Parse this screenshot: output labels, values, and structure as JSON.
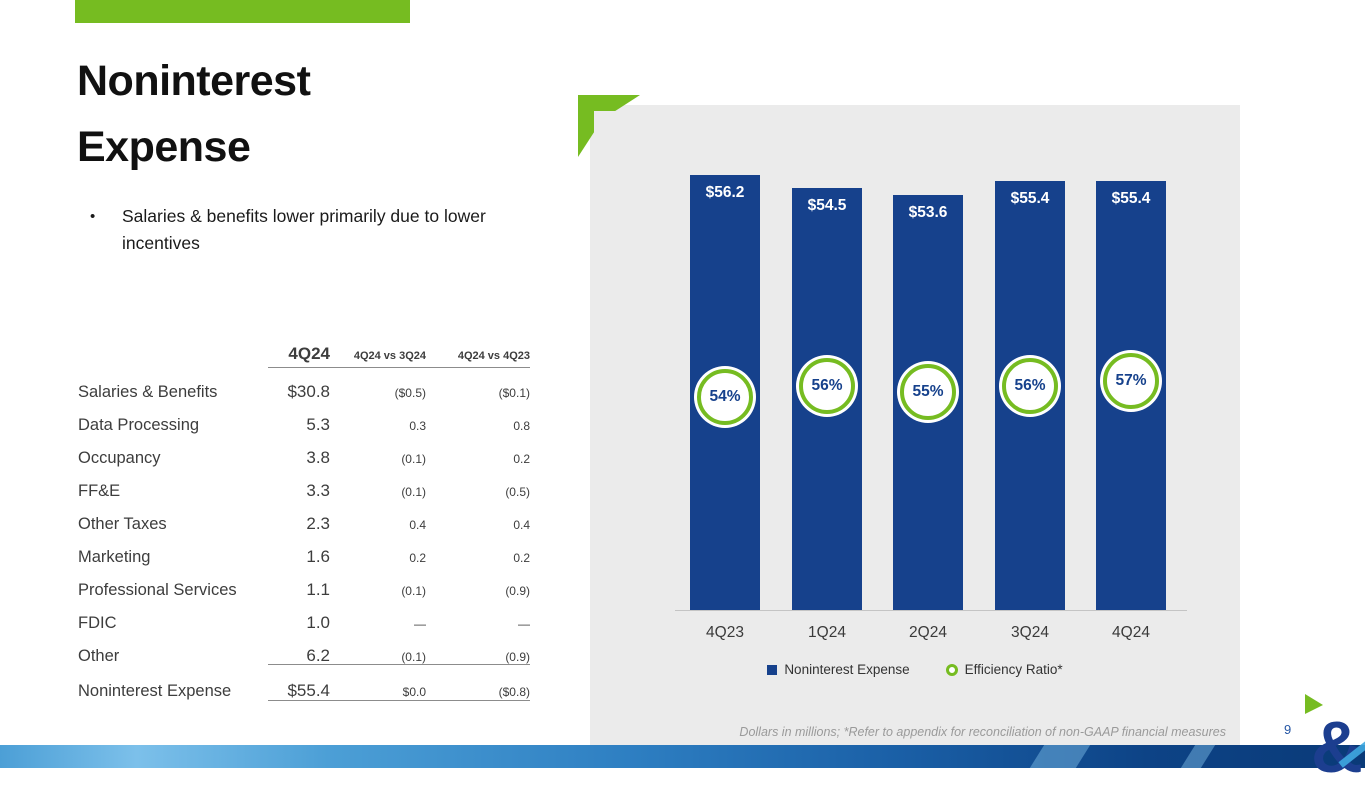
{
  "slide": {
    "title_line1": "Noninterest",
    "title_line2": "Expense",
    "bullet_marker": "•",
    "bullet_text": "Salaries & benefits lower primarily due to lower incentives",
    "footnote": "Dollars in millions; *Refer to appendix for reconciliation of non-GAAP financial measures",
    "page_number": "9",
    "logo_text": "&"
  },
  "table": {
    "col_4q24": "4Q24",
    "col_vs_3q24": "4Q24 vs 3Q24",
    "col_vs_4q23": "4Q24 vs 4Q23",
    "rows": [
      {
        "label": "Salaries & Benefits",
        "q": "$30.8",
        "vs3q": "($0.5)",
        "vs4q": "($0.1)"
      },
      {
        "label": "Data Processing",
        "q": "5.3",
        "vs3q": "0.3",
        "vs4q": "0.8"
      },
      {
        "label": "Occupancy",
        "q": "3.8",
        "vs3q": "(0.1)",
        "vs4q": "0.2"
      },
      {
        "label": "FF&E",
        "q": "3.3",
        "vs3q": "(0.1)",
        "vs4q": "(0.5)"
      },
      {
        "label": "Other Taxes",
        "q": "2.3",
        "vs3q": "0.4",
        "vs4q": "0.4"
      },
      {
        "label": "Marketing",
        "q": "1.6",
        "vs3q": "0.2",
        "vs4q": "0.2"
      },
      {
        "label": "Professional Services",
        "q": "1.1",
        "vs3q": "(0.1)",
        "vs4q": "(0.9)"
      },
      {
        "label": "FDIC",
        "q": "1.0",
        "vs3q": "—",
        "vs4q": "—"
      },
      {
        "label": "Other",
        "q": "6.2",
        "vs3q": "(0.1)",
        "vs4q": "(0.9)"
      }
    ],
    "total": {
      "label": "Noninterest Expense",
      "q": "$55.4",
      "vs3q": "$0.0",
      "vs4q": "($0.8)"
    }
  },
  "chart_data": {
    "type": "bar",
    "categories": [
      "4Q23",
      "1Q24",
      "2Q24",
      "3Q24",
      "4Q24"
    ],
    "series": [
      {
        "name": "Noninterest Expense",
        "values": [
          56.2,
          54.5,
          53.6,
          55.4,
          55.4
        ],
        "labels": [
          "$56.2",
          "$54.5",
          "$53.6",
          "$55.4",
          "$55.4"
        ]
      },
      {
        "name": "Efficiency Ratio*",
        "values": [
          54,
          56,
          55,
          56,
          57
        ],
        "labels": [
          "54%",
          "56%",
          "55%",
          "56%",
          "57%"
        ]
      }
    ],
    "legend": [
      {
        "label": "Noninterest Expense",
        "marker": "square",
        "color": "#16418C"
      },
      {
        "label": "Efficiency Ratio*",
        "marker": "circle",
        "color": "#76BC21"
      }
    ],
    "xlabel": "",
    "ylabel": "",
    "ylim": [
      0,
      60
    ],
    "grid": false,
    "legend_position": "bottom"
  },
  "colors": {
    "accent_green": "#76BC21",
    "bar_blue": "#16418C",
    "panel_gray": "#EBEBEB",
    "footer_blue_dark": "#0A3A78",
    "footer_blue_light": "#7CC0EA"
  }
}
